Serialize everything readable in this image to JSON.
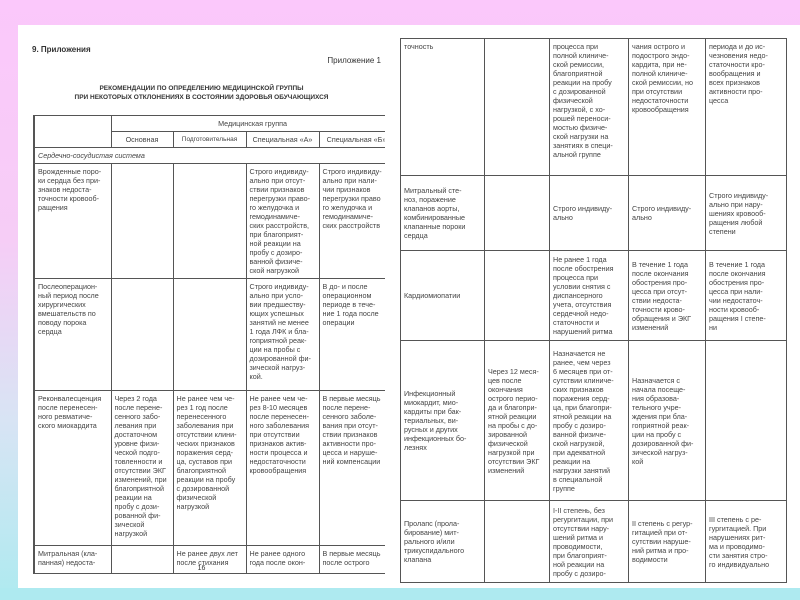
{
  "left_page": {
    "section_heading": "9. Приложения",
    "appendix_label": "Приложение 1",
    "title_line1": "РЕКОМЕНДАЦИИ ПО ОПРЕДЕЛЕНИЮ МЕДИЦИНСКОЙ ГРУППЫ",
    "title_line2": "ПРИ НЕКОТОРЫХ ОТКЛОНЕНИЯХ В СОСТОЯНИИ ЗДОРОВЬЯ ОБУЧАЮЩИХСЯ",
    "group_header": "Медицинская группа",
    "columns": [
      "Основная",
      "Подготовительная",
      "Специальная «А»",
      "Специальная «Б»"
    ],
    "section": "Сердечно-сосудистая система",
    "rows": [
      [
        "Врожденные поро-\nки сердца без при-\nзнаков недоста-\nточности кровооб-\nращения",
        "",
        "",
        "Строго индивиду-\nально при отсут-\nствии признаков\nперегрузки право-\nго желудочка и\nгемодинамиче-\nских расстройств,\nпри благоприят-\nной реакции на\nпробу с дозиро-\nванной физиче-\nской нагрузкой",
        "Строго индивиду-\nально при нали-\nчии признаков\nперегрузки право\nго желудочка и\nгемодинамиче-\nских расстройств"
      ],
      [
        "Послеоперацион-\nный период после\nхирургических\nвмешательств по\nповоду порока\nсердца",
        "",
        "",
        "Строго индивиду-\nально при усло-\nвии предшеству-\nющих успешных\nзанятий не менее\n1 года ЛФК и бла-\nгоприятной реак-\nции на пробы с\nдозированной фи-\nзической нагруз-\nкой.",
        "В до- и после\nоперационном\nпериоде в тече-\nние 1 года после\nоперации"
      ],
      [
        "Реконвалесценция\nпосле перенесен-\nного ревматиче-\nского миокардита",
        "Через 2 года\nпосле перене-\nсенного забо-\nлевания при\nдостаточном\nуровне физи-\nческой подго-\nтовленности и\nотсутствии ЭКГ\nизменений, при\nблагоприятной\nреакции на\nпробу с дози-\nрованной фи-\nзической\nнагрузкой",
        "Не ранее чем че-\nрез 1 год после\nперенесенного\nзаболевания при\nотсутствии клини-\nческих признаков\nпоражения серд-\nца, суставов при\nблагоприятной\nреакции на пробу\nс дозированной\nфизической\nнагрузкой",
        "Не ранее чем че-\nрез 8-10 месяцев\nпосле перенесен-\nного заболевания\nпри отсутствии\nпризнаков актив-\nности процесса и\nнедостаточности\nкровообращения",
        "В первые месяць\nпосле перене-\nсенного заболе-\nвания при отсут-\nствии признаков\nактивности про-\nцесса и наруше-\nний компенсации"
      ],
      [
        "Митральная (кла-\nпанная) недоста-",
        "",
        "Не ранее двух лет\nпосле стихания",
        "Не ранее одного\nгода после окон-",
        "В первые месяць\nпосле острого"
      ]
    ],
    "page_number": "16"
  },
  "right_page": {
    "rows": [
      [
        "точность",
        "",
        "процесса при\nполной клиниче-\nской ремиссии,\nблагоприятной\nреакции на пробу\nс дозированной\nфизической\nнагрузкой, с хо-\nрошей переноси-\nмостью физиче-\nской нагрузки на\nзанятиях в специ-\nальной группе",
        "чания острого и\nподострого эндо-\nкардита, при не-\nполной клиниче-\nской ремиссии, но\nпри отсутствии\nнедостаточности\nкровообращения",
        "периода и до ис-\nчезновения недо-\nстаточности кро-\nвообращения и\nвсех признаков\nактивности про-\nцесса"
      ],
      [
        "Митральный сте-\nноз, поражение\nклапанов аорты,\nкомбинированные\nклапанные пороки\nсердца",
        "",
        "Строго индивиду-\nально",
        "Строго индивиду-\nально",
        "Строго индивиду-\nально при нару-\nшениях кровооб-\nращения любой\nстепени"
      ],
      [
        "Кардиомиопатии",
        "",
        "Не ранее 1 года\nпосле обострения\nпроцесса при\nусловии снятия с\nдиспансерного\nучета, отсутствия\nсердечной недо-\nстаточности и\nнарушений ритма",
        "В течение 1 года\nпосле окончания\nобострения про-\nцесса при отсут-\nствии недоста-\nточности крово-\nобращения и ЭКГ\nизменений",
        "В течение 1 года\nпосле окончания\nобострения про-\nцесса при нали-\nчии недостаточ-\nности кровооб-\nращения I степе-\nни"
      ],
      [
        "Инфекционный\nмиокардит, мио-\nкардиты при бак-\nтериальных, ви-\nрусных и других\nинфекционных бо-\nлезнях",
        "Через 12 меся-\nцев после\nокончания\nострого перио-\nда и благопри-\nятной реакции\nна пробы с до-\nзированной\nфизической\nнагрузкой при\nотсутствии ЭКГ\nизменений",
        "Назначается не\nранее, чем через\n6 месяцев при от-\nсутствии клиниче-\nских признаков\nпоражения серд-\nца, при благопри-\nятной реакции на\nпробу с дозиро-\nванной физиче-\nской нагрузкой,\nпри адекватной\nреакции на\nнагрузки занятий\nв специальной\nгруппе",
        "Назначается с\nначала посеще-\nния образова-\nтельного учре-\nждения при бла-\nгоприятной реак-\nции на пробу с\nдозированной фи-\nзической нагруз-\nкой",
        ""
      ],
      [
        "Пролапс (прола-\nбирование) мит-\nрального и/или\nтрикуспидального\nклапана",
        "",
        "I-II степень, без\nрегургитации, при\nотсутствии нару-\nшений ритма и\nпроводимости,\nпри благоприят-\nной реакции на\nпробу с дозиро-",
        "II степень с регур-\nгитацией при от-\nсутствии наруше-\nний ритма и про-\nводимости",
        "III степень с ре-\nгургитацией. При\nнарушениях рит-\nма и проводимо-\nсти занятия стро-\nго индивидуально"
      ]
    ],
    "page_number": "17"
  }
}
